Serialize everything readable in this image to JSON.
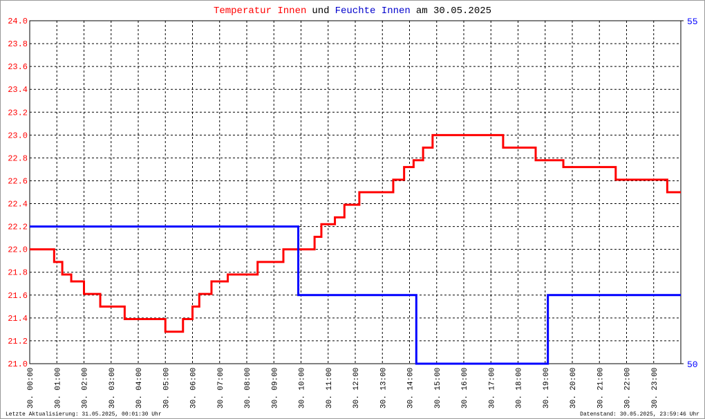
{
  "chart_data": {
    "type": "line",
    "title_segments": [
      {
        "text": "Temperatur Innen",
        "color": "#ff0000"
      },
      {
        "text": "und",
        "color": "#000000"
      },
      {
        "text": "Feuchte Innen",
        "color": "#0000cc"
      },
      {
        "text": "am 30.05.2025",
        "color": "#000000"
      }
    ],
    "footer_left": "Letzte Aktualisierung: 31.05.2025, 00:01:30 Uhr",
    "footer_right": "Datenstand: 30.05.2025, 23:59:46 Uhr",
    "grid": true,
    "xlim": [
      0,
      24
    ],
    "xticks": [
      {
        "value": 0,
        "label": "30. 00:00"
      },
      {
        "value": 1,
        "label": "30. 01:00"
      },
      {
        "value": 2,
        "label": "30. 02:00"
      },
      {
        "value": 3,
        "label": "30. 03:00"
      },
      {
        "value": 4,
        "label": "30. 04:00"
      },
      {
        "value": 5,
        "label": "30. 05:00"
      },
      {
        "value": 6,
        "label": "30. 06:00"
      },
      {
        "value": 7,
        "label": "30. 07:00"
      },
      {
        "value": 8,
        "label": "30. 08:00"
      },
      {
        "value": 9,
        "label": "30. 09:00"
      },
      {
        "value": 10,
        "label": "30. 10:00"
      },
      {
        "value": 11,
        "label": "30. 11:00"
      },
      {
        "value": 12,
        "label": "30. 12:00"
      },
      {
        "value": 13,
        "label": "30. 13:00"
      },
      {
        "value": 14,
        "label": "30. 14:00"
      },
      {
        "value": 15,
        "label": "30. 15:00"
      },
      {
        "value": 16,
        "label": "30. 16:00"
      },
      {
        "value": 17,
        "label": "30. 17:00"
      },
      {
        "value": 18,
        "label": "30. 18:00"
      },
      {
        "value": 19,
        "label": "30. 19:00"
      },
      {
        "value": 20,
        "label": "30. 20:00"
      },
      {
        "value": 21,
        "label": "30. 21:00"
      },
      {
        "value": 22,
        "label": "30. 22:00"
      },
      {
        "value": 23,
        "label": "30. 23:00"
      }
    ],
    "ylim": [
      21.0,
      24.0
    ],
    "yticks": [
      {
        "value": 21,
        "label": "21.0"
      },
      21.2,
      21.4,
      21.6,
      21.8,
      {
        "value": 22,
        "label": "22.0"
      },
      22.2,
      22.4,
      22.6,
      22.8,
      {
        "value": 23,
        "label": "23.0"
      },
      23.2,
      23.4,
      23.6,
      23.8,
      {
        "value": 24,
        "label": "24.0"
      }
    ],
    "y2lim": [
      50,
      55
    ],
    "y2ticks": [
      50,
      55
    ],
    "series": [
      {
        "name": "Temperatur Innen",
        "color": "#ff0000",
        "axis": "y",
        "x": [
          0,
          0.9,
          0.9,
          1.2,
          1.2,
          1.53,
          1.53,
          2.0,
          2.0,
          2.6,
          2.6,
          3.5,
          3.5,
          5.0,
          5.0,
          5.65,
          5.65,
          6.0,
          6.0,
          6.25,
          6.25,
          6.7,
          6.7,
          7.3,
          7.3,
          8.4,
          8.4,
          9.35,
          9.35,
          10.5,
          10.5,
          10.75,
          10.75,
          11.25,
          11.25,
          11.6,
          11.6,
          12.15,
          12.15,
          13.4,
          13.4,
          13.8,
          13.8,
          14.15,
          14.15,
          14.5,
          14.5,
          14.85,
          14.85,
          17.45,
          17.45,
          18.65,
          18.65,
          19.67,
          19.67,
          21.6,
          21.6,
          23.5,
          23.5,
          24
        ],
        "values": [
          22.0,
          22.0,
          21.89,
          21.89,
          21.78,
          21.78,
          21.72,
          21.72,
          21.61,
          21.61,
          21.5,
          21.5,
          21.39,
          21.39,
          21.28,
          21.28,
          21.39,
          21.39,
          21.5,
          21.5,
          21.61,
          21.61,
          21.72,
          21.72,
          21.78,
          21.78,
          21.89,
          21.89,
          22.0,
          22.0,
          22.11,
          22.11,
          22.22,
          22.22,
          22.28,
          22.28,
          22.39,
          22.39,
          22.5,
          22.5,
          22.61,
          22.61,
          22.72,
          22.72,
          22.78,
          22.78,
          22.89,
          22.89,
          23.0,
          23.0,
          22.89,
          22.89,
          22.78,
          22.78,
          22.72,
          22.72,
          22.61,
          22.61,
          22.5,
          22.5
        ]
      },
      {
        "name": "Feuchte Innen",
        "color": "#0000ff",
        "axis": "y2",
        "x": [
          0,
          9.9,
          9.9,
          14.25,
          14.25,
          14.4,
          14.4,
          19.1,
          19.1,
          19.5,
          19.5,
          24
        ],
        "values": [
          52,
          52,
          51,
          51,
          50,
          50,
          50,
          50,
          51,
          51,
          51,
          51
        ]
      }
    ]
  }
}
